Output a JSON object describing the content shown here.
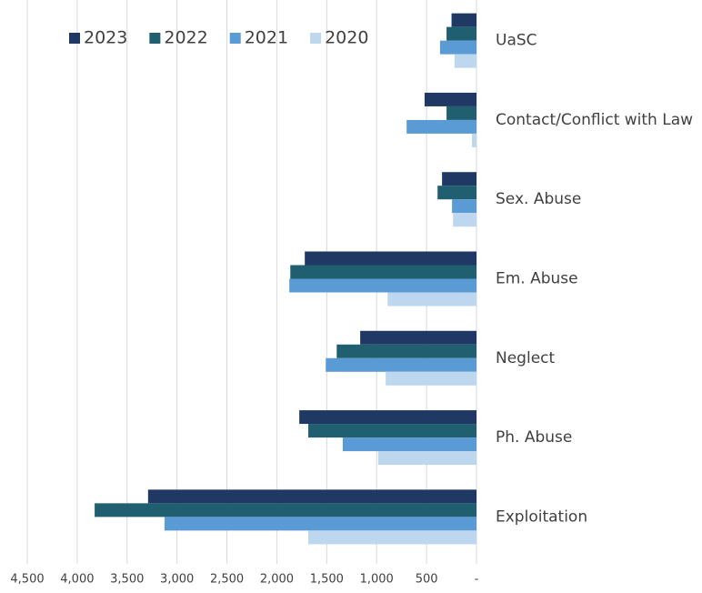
{
  "chart_data": {
    "type": "bar",
    "orientation": "horizontal",
    "categories": [
      "UaSC",
      "Contact/Conflict with Law",
      "Sex. Abuse",
      "Em. Abuse",
      "Neglect",
      "Ph. Abuse",
      "Exploitation"
    ],
    "series": [
      {
        "name": "2023",
        "color": "#1f3864",
        "values": [
          250,
          520,
          345,
          1720,
          1165,
          1775,
          3290
        ]
      },
      {
        "name": "2022",
        "color": "#1f5f6f",
        "values": [
          300,
          300,
          390,
          1865,
          1400,
          1685,
          3825
        ]
      },
      {
        "name": "2021",
        "color": "#5b9bd5",
        "values": [
          365,
          700,
          245,
          1875,
          1510,
          1340,
          3125
        ]
      },
      {
        "name": "2020",
        "color": "#bdd7ee",
        "values": [
          220,
          45,
          235,
          890,
          910,
          985,
          1685
        ]
      }
    ],
    "xlim": [
      4500,
      0
    ],
    "xticks": [
      {
        "value": 4500,
        "label": "4,500"
      },
      {
        "value": 4000,
        "label": "4,000"
      },
      {
        "value": 3500,
        "label": "3,500"
      },
      {
        "value": 3000,
        "label": "3,000"
      },
      {
        "value": 2500,
        "label": "2,500"
      },
      {
        "value": 2000,
        "label": "2,000"
      },
      {
        "value": 1500,
        "label": "1,500"
      },
      {
        "value": 1000,
        "label": "1,000"
      },
      500,
      {
        "value": 0,
        "label": "-"
      }
    ],
    "grid": true,
    "legend": "upper left"
  }
}
